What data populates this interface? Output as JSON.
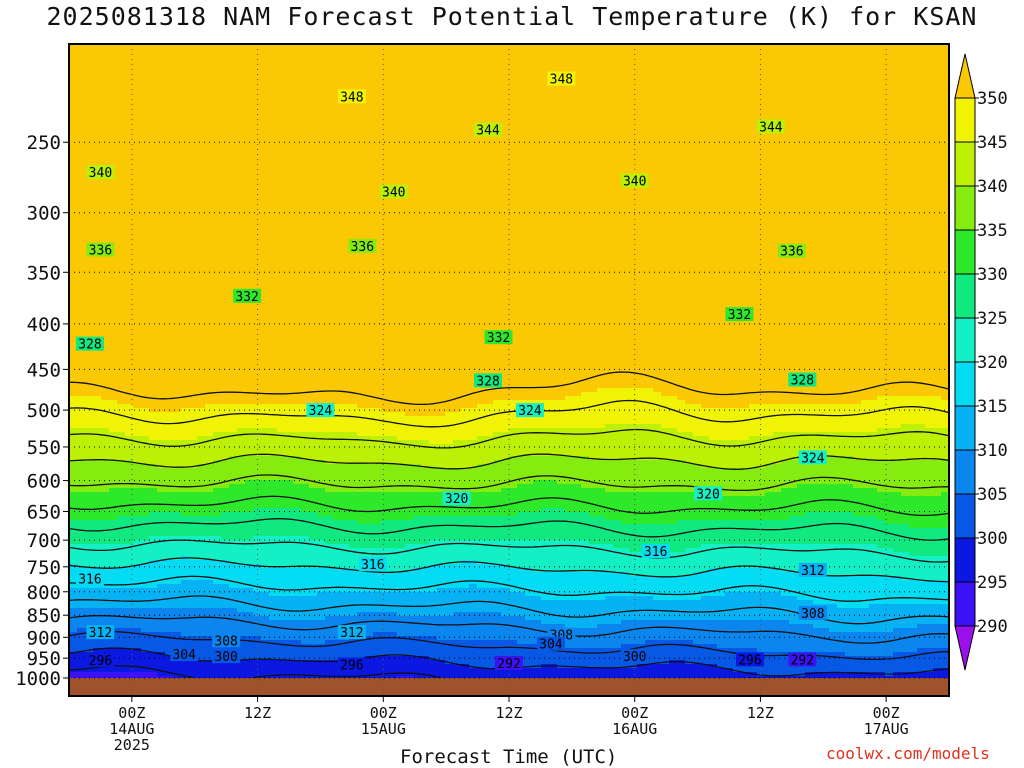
{
  "title": "2025081318 NAM Forecast Potential Temperature (K) for KSAN",
  "xlabel": "Forecast Time (UTC)",
  "credit": "coolwx.com/models",
  "chart_data": {
    "type": "heatmap",
    "title": "2025081318 NAM Forecast Potential Temperature (K) for KSAN",
    "xlabel": "Forecast Time (UTC)",
    "ylabel": "",
    "y_axis": "pressure (hPa), log scale, inverted",
    "ylim": [
      1000,
      200
    ],
    "y_ticks": [
      250,
      300,
      350,
      400,
      450,
      500,
      550,
      600,
      650,
      700,
      750,
      800,
      850,
      900,
      950,
      1000
    ],
    "x_forecast_hours": [
      0,
      84
    ],
    "x_ticks": [
      {
        "hour": 6,
        "label": "00Z",
        "date": "14AUG",
        "year": "2025"
      },
      {
        "hour": 18,
        "label": "12Z",
        "date": "",
        "year": ""
      },
      {
        "hour": 30,
        "label": "00Z",
        "date": "15AUG",
        "year": ""
      },
      {
        "hour": 42,
        "label": "12Z",
        "date": "",
        "year": ""
      },
      {
        "hour": 54,
        "label": "00Z",
        "date": "16AUG",
        "year": ""
      },
      {
        "hour": 66,
        "label": "12Z",
        "date": "",
        "year": ""
      },
      {
        "hour": 78,
        "label": "00Z",
        "date": "17AUG",
        "year": ""
      }
    ],
    "grid": "dotted",
    "colorbar": {
      "labels": [
        350,
        345,
        340,
        335,
        330,
        325,
        320,
        315,
        310,
        305,
        300,
        295,
        290
      ],
      "levels": [
        285,
        290,
        295,
        300,
        305,
        310,
        315,
        320,
        325,
        330,
        335,
        340,
        345,
        350,
        355
      ],
      "colors": [
        "#9b11ee",
        "#3b12f6",
        "#0a18e2",
        "#0858e6",
        "#0a86ee",
        "#06b2f4",
        "#04dcf4",
        "#14f0c6",
        "#10e880",
        "#2ee82a",
        "#86ec10",
        "#bcf004",
        "#f0f404",
        "#fbc804"
      ]
    },
    "contour_interval": 4,
    "contour_labels": [
      {
        "value": 348,
        "hour": 27,
        "p": 222
      },
      {
        "value": 348,
        "hour": 47,
        "p": 212
      },
      {
        "value": 344,
        "hour": 40,
        "p": 242
      },
      {
        "value": 344,
        "hour": 67,
        "p": 240
      },
      {
        "value": 340,
        "hour": 3,
        "p": 270
      },
      {
        "value": 340,
        "hour": 31,
        "p": 284
      },
      {
        "value": 340,
        "hour": 54,
        "p": 276
      },
      {
        "value": 336,
        "hour": 3,
        "p": 330
      },
      {
        "value": 336,
        "hour": 28,
        "p": 327
      },
      {
        "value": 336,
        "hour": 69,
        "p": 331
      },
      {
        "value": 332,
        "hour": 17,
        "p": 372
      },
      {
        "value": 332,
        "hour": 41,
        "p": 414
      },
      {
        "value": 332,
        "hour": 64,
        "p": 390
      },
      {
        "value": 328,
        "hour": 2,
        "p": 421
      },
      {
        "value": 328,
        "hour": 40,
        "p": 463
      },
      {
        "value": 328,
        "hour": 70,
        "p": 462
      },
      {
        "value": 324,
        "hour": 24,
        "p": 500
      },
      {
        "value": 324,
        "hour": 44,
        "p": 500
      },
      {
        "value": 324,
        "hour": 71,
        "p": 565
      },
      {
        "value": 320,
        "hour": 37,
        "p": 628
      },
      {
        "value": 320,
        "hour": 61,
        "p": 620
      },
      {
        "value": 316,
        "hour": 2,
        "p": 773
      },
      {
        "value": 316,
        "hour": 29,
        "p": 745
      },
      {
        "value": 316,
        "hour": 56,
        "p": 720
      },
      {
        "value": 312,
        "hour": 3,
        "p": 888
      },
      {
        "value": 312,
        "hour": 27,
        "p": 888
      },
      {
        "value": 312,
        "hour": 71,
        "p": 756
      },
      {
        "value": 308,
        "hour": 15,
        "p": 907
      },
      {
        "value": 308,
        "hour": 47,
        "p": 894
      },
      {
        "value": 308,
        "hour": 71,
        "p": 845
      },
      {
        "value": 304,
        "hour": 11,
        "p": 940
      },
      {
        "value": 304,
        "hour": 46,
        "p": 915
      },
      {
        "value": 300,
        "hour": 15,
        "p": 945
      },
      {
        "value": 300,
        "hour": 54,
        "p": 945
      },
      {
        "value": 296,
        "hour": 3,
        "p": 955
      },
      {
        "value": 296,
        "hour": 27,
        "p": 966
      },
      {
        "value": 296,
        "hour": 65,
        "p": 953
      },
      {
        "value": 292,
        "hour": 42,
        "p": 962
      },
      {
        "value": 292,
        "hour": 70,
        "p": 953
      }
    ],
    "surface_fill": "#a0522d"
  }
}
